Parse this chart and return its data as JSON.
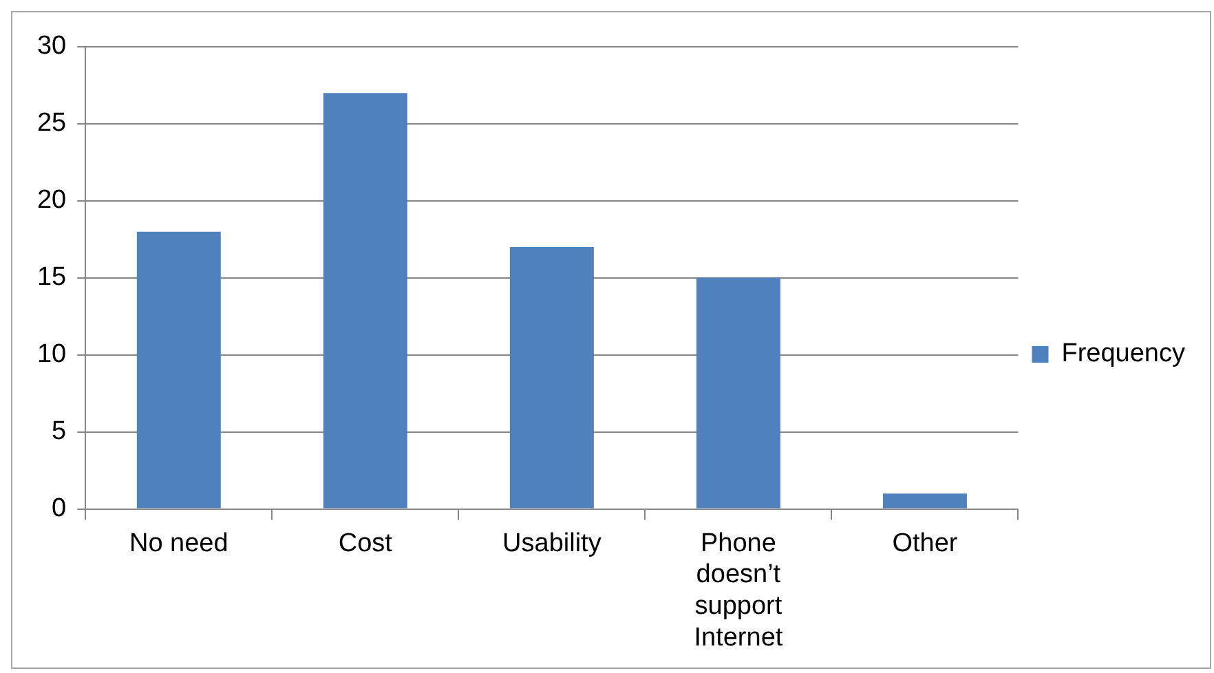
{
  "chart_data": {
    "type": "bar",
    "categories": [
      "No need",
      "Cost",
      "Usability",
      "Phone doesn’t support Internet",
      "Other"
    ],
    "series": [
      {
        "name": "Frequency",
        "color": "#4f81bd",
        "values": [
          18,
          27,
          17,
          15,
          1
        ]
      }
    ],
    "ylim": [
      0,
      30
    ],
    "yticks": [
      0,
      5,
      10,
      15,
      20,
      25,
      30
    ],
    "grid": "y",
    "legend": "right"
  }
}
